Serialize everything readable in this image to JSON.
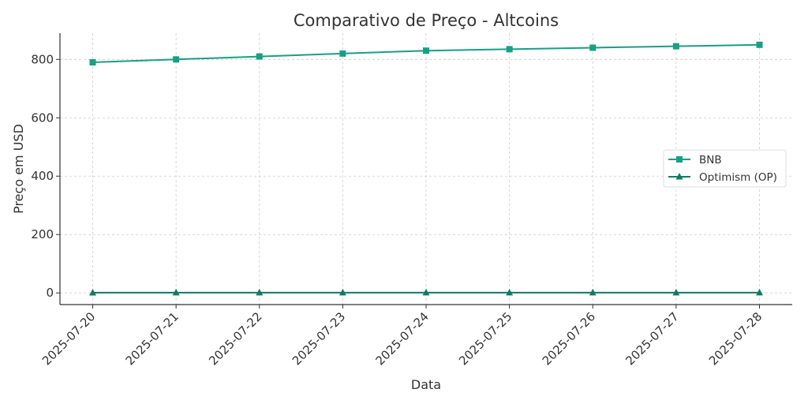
{
  "chart_data": {
    "type": "line",
    "title": "Comparativo de Preço - Altcoins",
    "xlabel": "Data",
    "ylabel": "Preço em USD",
    "x": [
      "2025-07-20",
      "2025-07-21",
      "2025-07-22",
      "2025-07-23",
      "2025-07-24",
      "2025-07-25",
      "2025-07-26",
      "2025-07-27",
      "2025-07-28"
    ],
    "ylim": [
      -40,
      890
    ],
    "yticks": [
      0,
      200,
      400,
      600,
      800
    ],
    "grid": true,
    "legend_position": "center-right",
    "series": [
      {
        "name": "BNB",
        "marker": "square",
        "color": "#16a085",
        "values": [
          790,
          800,
          810,
          820,
          830,
          835,
          840,
          845,
          850
        ]
      },
      {
        "name": "Optimism (OP)",
        "marker": "triangle",
        "color": "#117a65",
        "values": [
          0.72,
          0.75,
          0.78,
          0.8,
          0.82,
          0.85,
          0.87,
          0.9,
          0.92
        ]
      }
    ]
  }
}
